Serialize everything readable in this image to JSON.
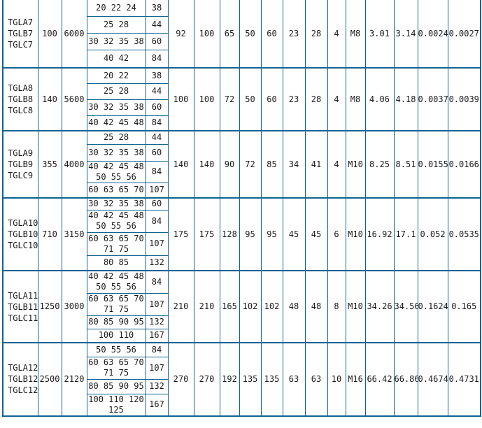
{
  "colors": {
    "border": "#0e6391",
    "text": "#1a1a1a",
    "background": "#ffffff"
  },
  "table": {
    "groups": [
      {
        "models": "TGLA7\nTGLB7\nTGLC7",
        "nominal_torque": "100",
        "max_speed": "6000",
        "bore_rows": [
          {
            "diameters": "20 22 24",
            "length": "38"
          },
          {
            "diameters": "25 28",
            "length": "44"
          },
          {
            "diameters": "30 32 35 38",
            "length": "60"
          },
          {
            "diameters": "40 42",
            "length": "84"
          }
        ],
        "values": [
          "92",
          "100",
          "65",
          "50",
          "60",
          "23",
          "28",
          "4",
          "M8",
          "3.01",
          "3.14",
          "0.0024",
          "0.0027"
        ]
      },
      {
        "models": "TGLA8\nTGLB8\nTGLC8",
        "nominal_torque": "140",
        "max_speed": "5600",
        "bore_rows": [
          {
            "diameters": "20 22",
            "length": "38"
          },
          {
            "diameters": "25 28",
            "length": "44"
          },
          {
            "diameters": "30 32 35 38",
            "length": "60"
          },
          {
            "diameters": "40 42 45 48",
            "length": "84"
          }
        ],
        "values": [
          "100",
          "100",
          "72",
          "50",
          "60",
          "23",
          "28",
          "4",
          "M8",
          "4.06",
          "4.18",
          "0.0037",
          "0.0039"
        ]
      },
      {
        "models": "TGLA9\nTGLB9\nTGLC9",
        "nominal_torque": "355",
        "max_speed": "4000",
        "bore_rows": [
          {
            "diameters": "25 28",
            "length": "44"
          },
          {
            "diameters": "30 32 35 38",
            "length": "60"
          },
          {
            "diameters": "40 42 45 48\n50 55 56",
            "length": "84"
          },
          {
            "diameters": "60 63 65 70",
            "length": "107"
          }
        ],
        "values": [
          "140",
          "140",
          "90",
          "72",
          "85",
          "34",
          "41",
          "4",
          "M10",
          "8.25",
          "8.51",
          "0.0155",
          "0.0166"
        ]
      },
      {
        "models": "TGLA10\nTGLB10\nTGLC10",
        "nominal_torque": "710",
        "max_speed": "3150",
        "bore_rows": [
          {
            "diameters": "30 32 35 38",
            "length": "60"
          },
          {
            "diameters": "40 42 45 48\n50 55 56",
            "length": "84"
          },
          {
            "diameters": "60 63 65 70\n71 75",
            "length": "107"
          },
          {
            "diameters": "80 85",
            "length": "132"
          }
        ],
        "values": [
          "175",
          "175",
          "128",
          "95",
          "95",
          "45",
          "45",
          "6",
          "M10",
          "16.92",
          "17.1",
          "0.052",
          "0.0535"
        ]
      },
      {
        "models": "TGLA11\nTGLB11\nTGLC11",
        "nominal_torque": "1250",
        "max_speed": "3000",
        "bore_rows": [
          {
            "diameters": "40 42 45 48\n50 55 56",
            "length": "84"
          },
          {
            "diameters": "60 63 65 70\n71 75",
            "length": "107"
          },
          {
            "diameters": "80 85 90 95",
            "length": "132"
          },
          {
            "diameters": "100 110",
            "length": "167"
          }
        ],
        "values": [
          "210",
          "210",
          "165",
          "102",
          "102",
          "48",
          "48",
          "8",
          "M10",
          "34.26",
          "34.56",
          "0.1624",
          "0.165"
        ]
      },
      {
        "models": "TGLA12\nTGLB12\nTGLC12",
        "nominal_torque": "2500",
        "max_speed": "2120",
        "bore_rows": [
          {
            "diameters": "50 55 56",
            "length": "84"
          },
          {
            "diameters": "60 63 65 70\n71 75",
            "length": "107"
          },
          {
            "diameters": "80 85 90 95",
            "length": "132"
          },
          {
            "diameters": "100 110 120\n125",
            "length": "167"
          }
        ],
        "values": [
          "270",
          "270",
          "192",
          "135",
          "135",
          "63",
          "63",
          "10",
          "M16",
          "66.42",
          "66.86",
          "0.4674",
          "0.4731"
        ]
      }
    ]
  }
}
